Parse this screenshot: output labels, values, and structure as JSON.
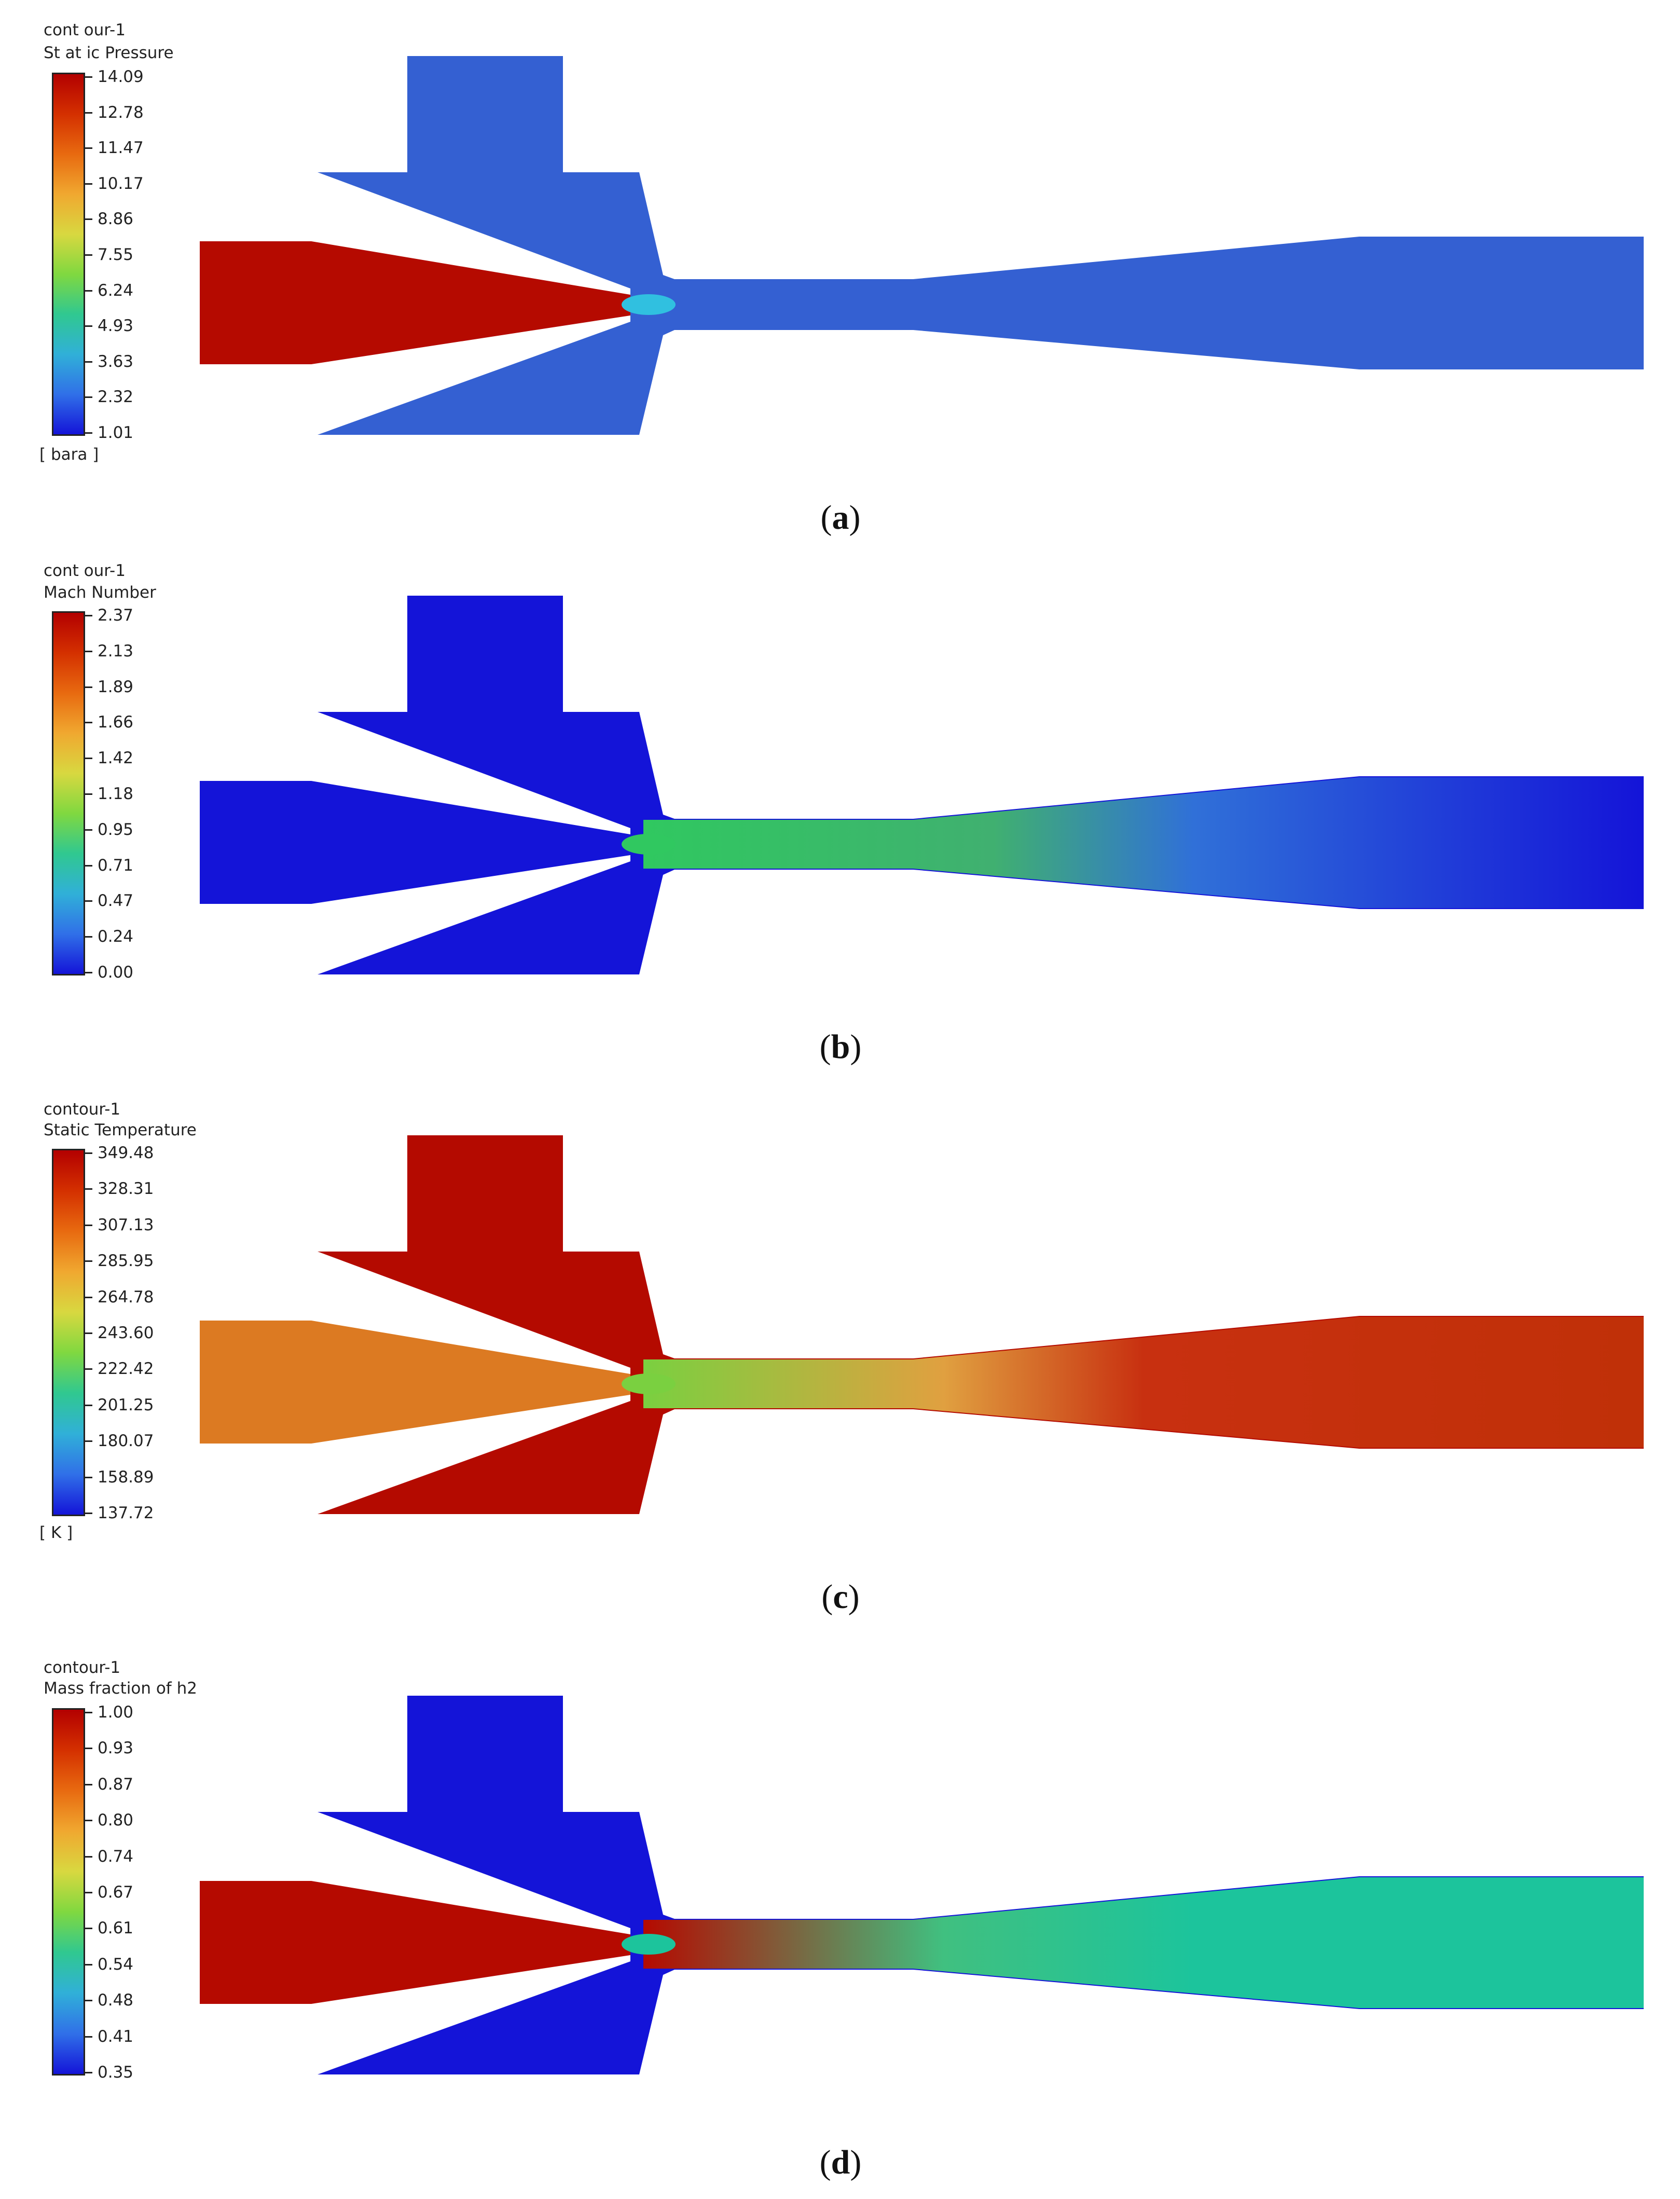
{
  "panels": [
    {
      "id": "a",
      "legend_title_line1": "cont our-1",
      "legend_title_line2": "St at ic Pressure",
      "ticks": [
        "14.09",
        "12.78",
        "11.47",
        "10.17",
        "8.86",
        "7.55",
        "6.24",
        "4.93",
        "3.63",
        "2.32",
        "1.01"
      ],
      "unit": "[ bara ]",
      "caption_letter": "a",
      "colors": {
        "inlet": "#b50a00",
        "body": "#3460d2",
        "jet": "#30c0e0"
      }
    },
    {
      "id": "b",
      "legend_title_line1": "cont our-1",
      "legend_title_line2": "Mach Number",
      "ticks": [
        "2.37",
        "2.13",
        "1.89",
        "1.66",
        "1.42",
        "1.18",
        "0.95",
        "0.71",
        "0.47",
        "0.24",
        "0.00"
      ],
      "unit": "",
      "caption_letter": "b",
      "colors": {
        "inlet": "#1414d8",
        "body": "#1414d8",
        "jet": "#30c860"
      }
    },
    {
      "id": "c",
      "legend_title_line1": "contour-1",
      "legend_title_line2": "Static Temperature",
      "ticks": [
        "349.48",
        "328.31",
        "307.13",
        "285.95",
        "264.78",
        "243.60",
        "222.42",
        "201.25",
        "180.07",
        "158.89",
        "137.72"
      ],
      "unit": "[ K ]",
      "caption_letter": "c",
      "colors": {
        "inlet": "#dc7a22",
        "body": "#b40a00",
        "jet": "#7ad040"
      }
    },
    {
      "id": "d",
      "legend_title_line1": "contour-1",
      "legend_title_line2": "Mass fraction of h2",
      "ticks": [
        "1.00",
        "0.93",
        "0.87",
        "0.80",
        "0.74",
        "0.67",
        "0.61",
        "0.54",
        "0.48",
        "0.41",
        "0.35"
      ],
      "unit": "",
      "caption_letter": "d",
      "colors": {
        "inlet": "#b50a00",
        "body": "#1414d8",
        "jet": "#1cc49c"
      }
    }
  ],
  "colormap": [
    "#b30000",
    "#d43000",
    "#e86a10",
    "#f0a830",
    "#d8d840",
    "#80d840",
    "#30c890",
    "#30b0d8",
    "#3070e8",
    "#1414d8"
  ],
  "caption_open": "(",
  "caption_close": ")"
}
